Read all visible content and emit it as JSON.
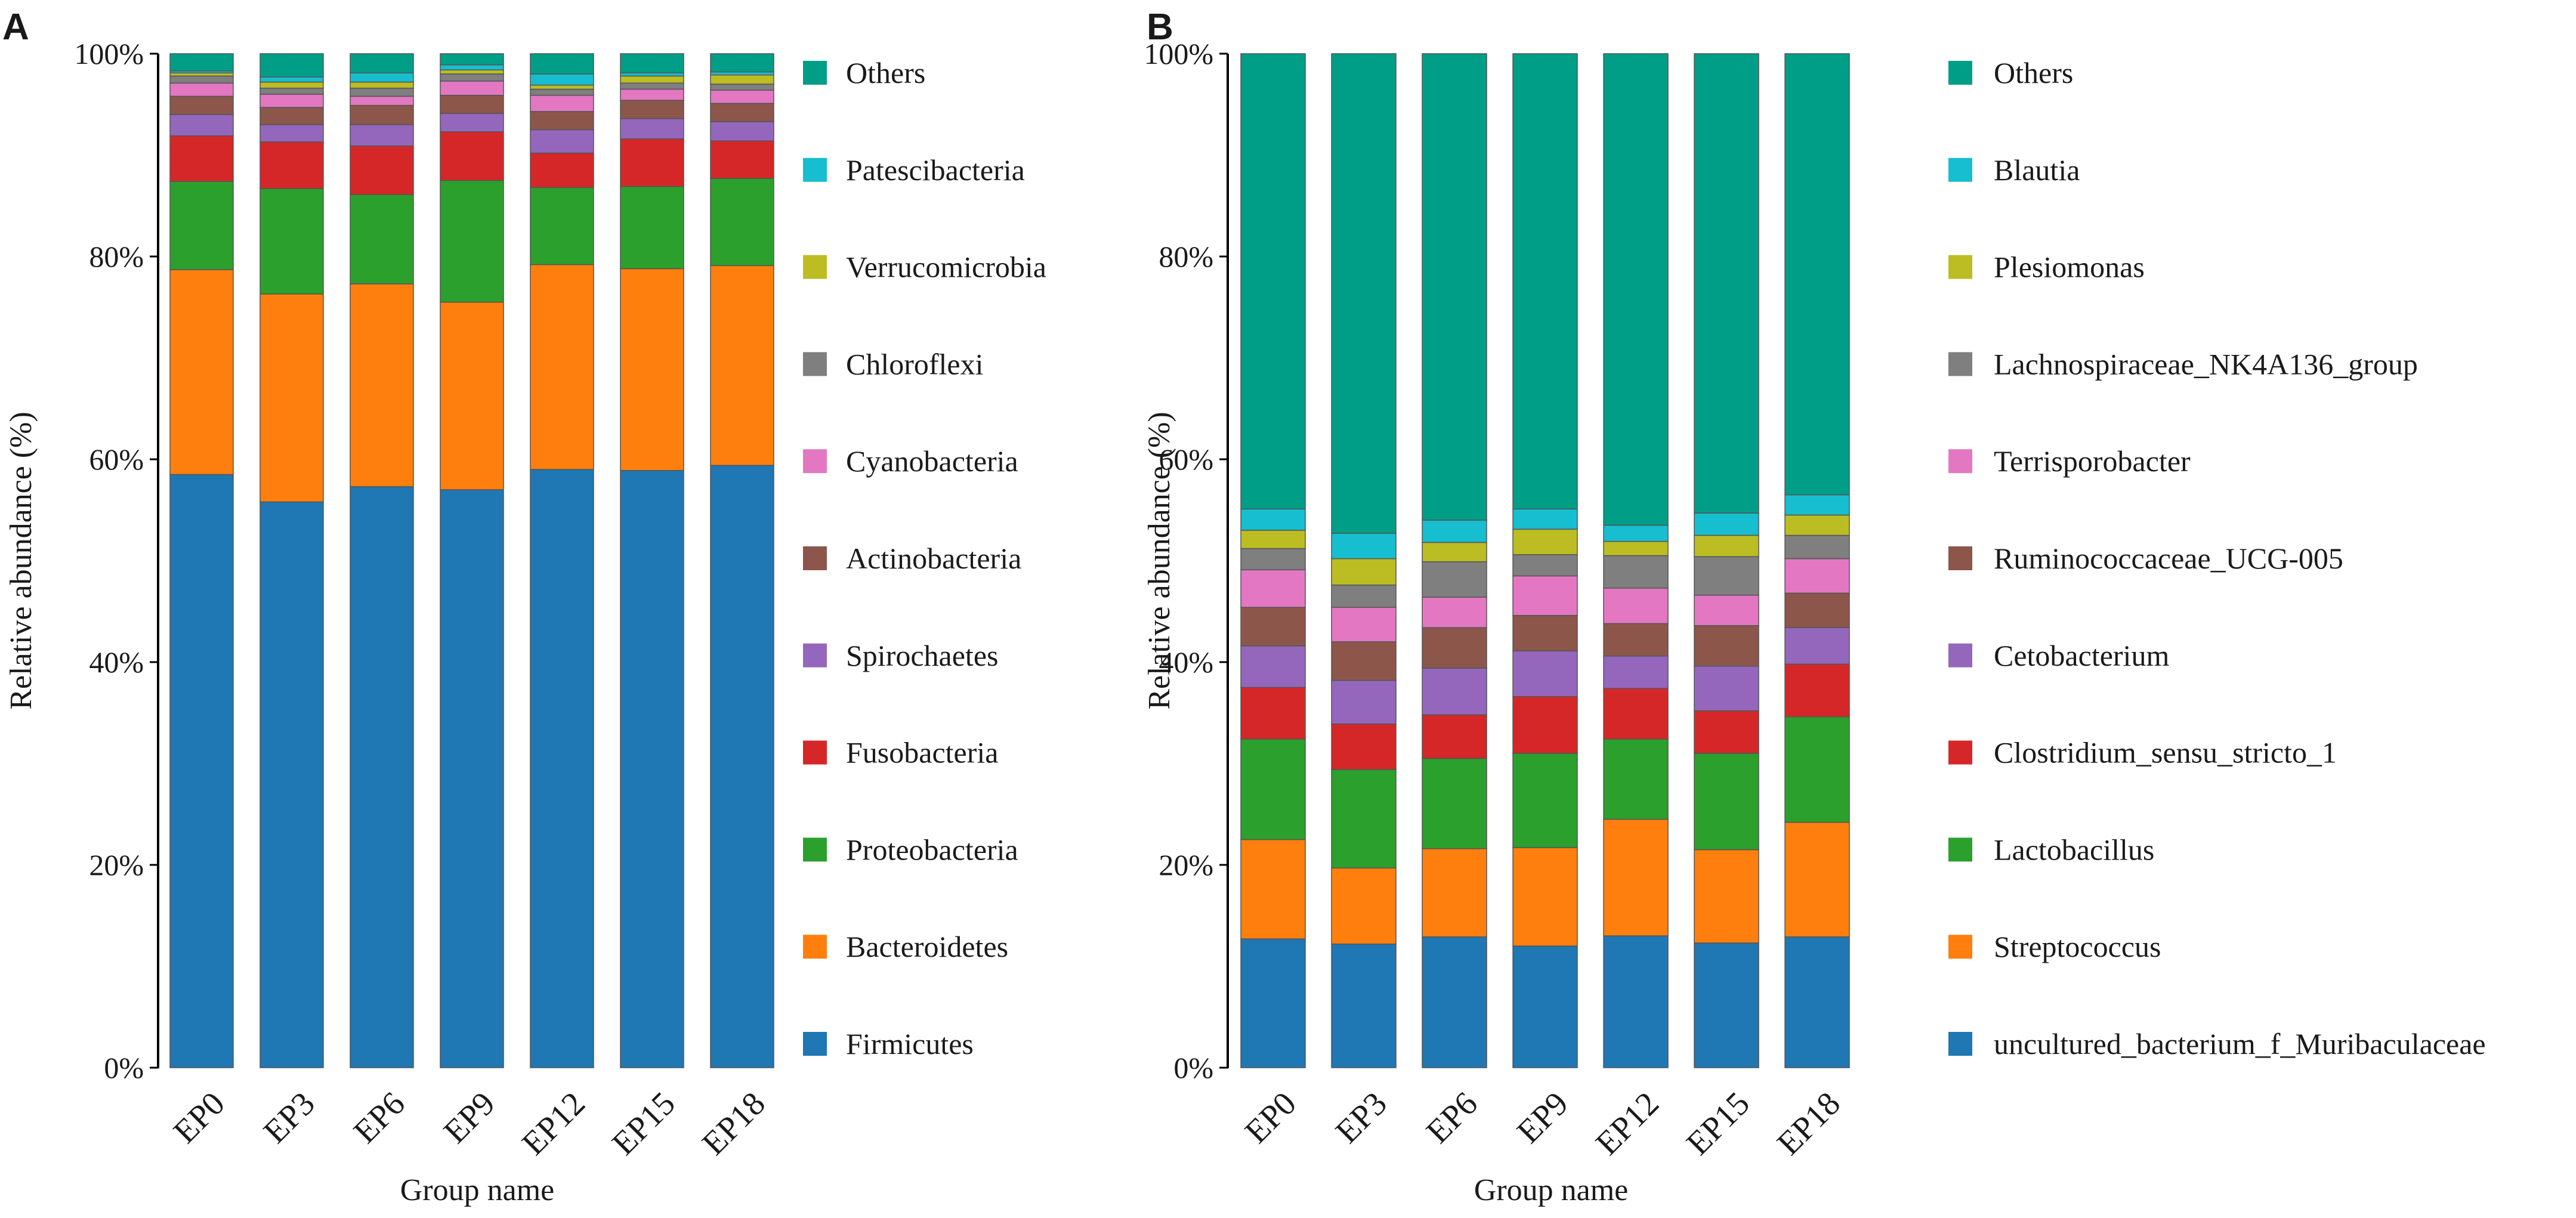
{
  "chart_data": [
    {
      "panel": "A",
      "type": "bar",
      "stacked": true,
      "normalized": true,
      "xlabel": "Group name",
      "ylabel": "Relative abundance (%)",
      "ylim": [
        0,
        100
      ],
      "yticks": [
        "0%",
        "20%",
        "40%",
        "60%",
        "80%",
        "100%"
      ],
      "legend_position": "right",
      "categories": [
        "EP0",
        "EP3",
        "EP6",
        "EP9",
        "EP12",
        "EP15",
        "EP18"
      ],
      "series": [
        {
          "name": "Firmicutes",
          "color": "#1f77b4",
          "values": [
            58.5,
            55.8,
            57.3,
            57.0,
            59.0,
            58.9,
            59.4
          ]
        },
        {
          "name": "Bacteroidetes",
          "color": "#ff7f0e",
          "values": [
            20.2,
            20.5,
            20.0,
            18.5,
            20.2,
            19.9,
            19.7
          ]
        },
        {
          "name": "Proteobacteria",
          "color": "#2ca02c",
          "values": [
            8.7,
            10.4,
            8.8,
            12.0,
            7.6,
            8.1,
            8.6
          ]
        },
        {
          "name": "Fusobacteria",
          "color": "#d62728",
          "values": [
            4.5,
            4.6,
            4.8,
            4.8,
            3.4,
            4.7,
            3.7
          ]
        },
        {
          "name": "Spirochaetes",
          "color": "#9467bd",
          "values": [
            2.1,
            1.7,
            2.1,
            1.8,
            2.3,
            2.0,
            1.9
          ]
        },
        {
          "name": "Actinobacteria",
          "color": "#8c564b",
          "values": [
            1.8,
            1.7,
            1.9,
            1.8,
            1.8,
            1.8,
            1.8
          ]
        },
        {
          "name": "Cyanobacteria",
          "color": "#e377c2",
          "values": [
            1.3,
            1.3,
            0.9,
            1.4,
            1.6,
            1.1,
            1.3
          ]
        },
        {
          "name": "Chloroflexi",
          "color": "#7f7f7f",
          "values": [
            0.7,
            0.6,
            0.8,
            0.7,
            0.6,
            0.6,
            0.6
          ]
        },
        {
          "name": "Verrucomicrobia",
          "color": "#bcbd22",
          "values": [
            0.3,
            0.6,
            0.6,
            0.4,
            0.4,
            0.7,
            0.9
          ]
        },
        {
          "name": "Patescibacteria",
          "color": "#17becf",
          "values": [
            0.2,
            0.5,
            0.9,
            0.5,
            1.1,
            0.3,
            0.3
          ]
        },
        {
          "name": "Others",
          "color": "#009e86",
          "values": [
            1.7,
            2.3,
            1.9,
            1.1,
            2.0,
            1.9,
            1.8
          ]
        }
      ]
    },
    {
      "panel": "B",
      "type": "bar",
      "stacked": true,
      "normalized": true,
      "xlabel": "Group name",
      "ylabel": "Relative abundance (%)",
      "ylim": [
        0,
        100
      ],
      "yticks": [
        "0%",
        "20%",
        "40%",
        "60%",
        "80%",
        "100%"
      ],
      "legend_position": "right",
      "categories": [
        "EP0",
        "EP3",
        "EP6",
        "EP9",
        "EP12",
        "EP15",
        "EP18"
      ],
      "series": [
        {
          "name": "uncultured_bacterium_f_Muribaculaceae",
          "color": "#1f77b4",
          "values": [
            12.7,
            12.2,
            12.9,
            12.0,
            13.0,
            12.3,
            12.9
          ]
        },
        {
          "name": "Streptococcus",
          "color": "#ff7f0e",
          "values": [
            9.8,
            7.5,
            8.7,
            9.7,
            11.5,
            9.2,
            11.3
          ]
        },
        {
          "name": "Lactobacillus",
          "color": "#2ca02c",
          "values": [
            9.9,
            9.7,
            8.9,
            9.3,
            7.9,
            9.5,
            10.4
          ]
        },
        {
          "name": "Clostridium_sensu_stricto_1",
          "color": "#d62728",
          "values": [
            5.1,
            4.5,
            4.3,
            5.6,
            5.0,
            4.2,
            5.2
          ]
        },
        {
          "name": "Cetobacterium",
          "color": "#9467bd",
          "values": [
            4.1,
            4.3,
            4.6,
            4.5,
            3.2,
            4.4,
            3.6
          ]
        },
        {
          "name": "Ruminococcaceae_UCG-005",
          "color": "#8c564b",
          "values": [
            3.8,
            3.8,
            4.0,
            3.5,
            3.2,
            4.0,
            3.4
          ]
        },
        {
          "name": "Terrisporobacter",
          "color": "#e377c2",
          "values": [
            3.7,
            3.4,
            3.0,
            3.9,
            3.5,
            3.0,
            3.4
          ]
        },
        {
          "name": "Lachnospiraceae_NK4A136_group",
          "color": "#7f7f7f",
          "values": [
            2.1,
            2.2,
            3.5,
            2.1,
            3.2,
            3.8,
            2.3
          ]
        },
        {
          "name": "Plesiomonas",
          "color": "#bcbd22",
          "values": [
            1.8,
            2.6,
            1.9,
            2.5,
            1.4,
            2.1,
            2.0
          ]
        },
        {
          "name": "Blautia",
          "color": "#17becf",
          "values": [
            2.1,
            2.5,
            2.2,
            2.0,
            1.6,
            2.2,
            2.0
          ]
        },
        {
          "name": "Others",
          "color": "#009e86",
          "values": [
            44.9,
            47.3,
            46.0,
            44.9,
            46.5,
            45.3,
            43.5
          ]
        }
      ]
    }
  ],
  "panel_labels": [
    "A",
    "B"
  ]
}
